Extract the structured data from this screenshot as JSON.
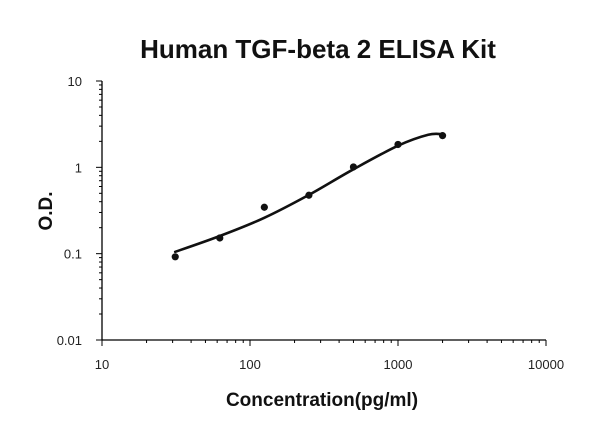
{
  "chart_data": {
    "type": "scatter",
    "title": "Human TGF-beta 2 ELISA Kit",
    "xlabel": "Concentration(pg/ml)",
    "ylabel": "O.D.",
    "x_scale": "log",
    "y_scale": "log",
    "xlim": [
      10,
      10000
    ],
    "ylim": [
      0.01,
      10
    ],
    "x_ticks": [
      "10",
      "100",
      "1000",
      "10000"
    ],
    "y_ticks": [
      "0.01",
      "0.1",
      "1",
      "10"
    ],
    "grid": false,
    "legend": "none",
    "series": [
      {
        "points": [
          {
            "x": 31.25,
            "y": 0.092
          },
          {
            "x": 62.5,
            "y": 0.152
          },
          {
            "x": 125,
            "y": 0.345
          },
          {
            "x": 250,
            "y": 0.475
          },
          {
            "x": 500,
            "y": 1.01
          },
          {
            "x": 1000,
            "y": 1.84
          },
          {
            "x": 2000,
            "y": 2.33
          }
        ],
        "fit_curve": [
          {
            "x": 31.25,
            "y": 0.105
          },
          {
            "x": 62.5,
            "y": 0.16
          },
          {
            "x": 125,
            "y": 0.26
          },
          {
            "x": 250,
            "y": 0.48
          },
          {
            "x": 500,
            "y": 0.95
          },
          {
            "x": 1000,
            "y": 1.78
          },
          {
            "x": 1600,
            "y": 2.38
          },
          {
            "x": 2000,
            "y": 2.42
          }
        ]
      }
    ],
    "colors": {
      "points": "#111111",
      "curve": "#111111",
      "axis": "#000000"
    }
  }
}
